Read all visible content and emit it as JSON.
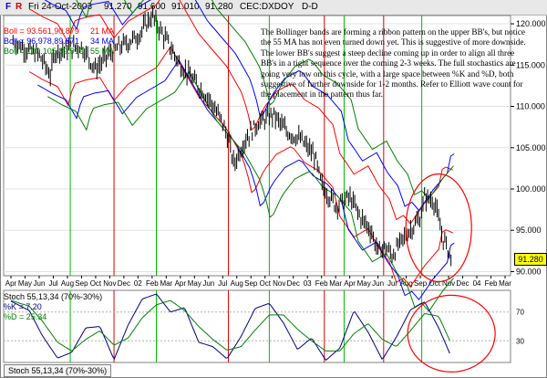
{
  "header": {
    "f_label": "F",
    "r_label": "R",
    "date": "Fri 24-Oct-2003",
    "open": "91.270",
    "high": "91.600",
    "low": "91.010",
    "close": "91.280",
    "symbol": "CEC:DXDOY",
    "period": "D-D"
  },
  "legend": [
    {
      "label": "Boll = 93.561,90.879",
      "ma": "21 MA",
      "color": "#ff0000"
    },
    {
      "label": "Boll = 96.978,89.871",
      "ma": "34 MA",
      "color": "#0000ff"
    },
    {
      "label": "Boll = 100.105,89.919",
      "ma": "55 MA",
      "color": "#008000"
    }
  ],
  "annotation": "The Bollinger bands are forming a ribbon pattern on the upper BB's, but notice the 55 MA has not even turned down yet.  This is suggestive of more downside.  The lower BB's suggest a steep decline coming up in order to align all three BB's in a tight sequence over the coming 2-3 weeks.  The full stochastics are going very low on this cycle, with a large space between %K and %D, both suggestive of further downside for 1-2 months.  Refer to Elliott wave count for the placement in the pattern thus far.",
  "price_badge": "91.280",
  "stoch_legend": {
    "title": "Stoch 55,13,34 (70%-30%)",
    "k": "%K = 7.20",
    "d": "%D = 25.34",
    "k_color": "#000080",
    "d_color": "#008000"
  },
  "status_tab": "Stoch 55,13,34 (70%-30%)",
  "chart_data": [
    {
      "type": "line",
      "ylim": [
        89.5,
        121
      ],
      "y_ticks": [
        90,
        95,
        100,
        105,
        110,
        115,
        120
      ],
      "x_ticks": [
        "Apr",
        "May",
        "Jun",
        "Jul",
        "Aug",
        "Sep",
        "Oct",
        "Nov",
        "Dec",
        "02",
        "Feb",
        "Mar",
        "Apr",
        "May",
        "Jun",
        "Jul",
        "Aug",
        "Sep",
        "Oct",
        "Nov",
        "Dec",
        "03",
        "Feb",
        "Mar",
        "Apr",
        "May",
        "Jun",
        "Jul",
        "Aug",
        "Sep",
        "Oct",
        "Nov",
        "Dec",
        "04",
        "Feb",
        "Mar"
      ],
      "x_index_range": [
        0,
        35
      ],
      "price_path": [
        [
          0,
          118
        ],
        [
          1,
          117
        ],
        [
          2,
          116.2
        ],
        [
          2.8,
          113.8
        ],
        [
          3.1,
          116.5
        ],
        [
          4,
          117
        ],
        [
          5,
          117.3
        ],
        [
          6,
          114.5
        ],
        [
          7,
          116.5
        ],
        [
          8,
          117.5
        ],
        [
          9,
          118.5
        ],
        [
          10,
          121
        ],
        [
          11,
          118
        ],
        [
          12,
          115
        ],
        [
          13,
          113
        ],
        [
          14,
          111
        ],
        [
          15,
          108
        ],
        [
          15.4,
          106
        ],
        [
          15.8,
          103
        ],
        [
          16.6,
          106
        ],
        [
          17.5,
          108
        ],
        [
          18.6,
          109
        ],
        [
          19.5,
          107
        ],
        [
          20.5,
          106
        ],
        [
          21.5,
          104
        ],
        [
          22,
          100.5
        ],
        [
          23,
          98
        ],
        [
          24,
          99
        ],
        [
          24.8,
          96.5
        ],
        [
          25.5,
          95
        ],
        [
          26,
          92.5
        ],
        [
          26.5,
          93
        ],
        [
          27,
          92
        ],
        [
          28,
          94.5
        ],
        [
          29,
          96.5
        ],
        [
          29.3,
          99
        ],
        [
          30,
          98.5
        ],
        [
          30.5,
          94.5
        ],
        [
          31,
          92.5
        ],
        [
          31.2,
          91.3
        ]
      ],
      "series": [
        {
          "name": "21 MA",
          "color": "#ff0000",
          "band_offsets": [
            3.8,
            -3.8
          ],
          "lag": 1.3
        },
        {
          "name": "34 MA",
          "color": "#0000ff",
          "band_offsets": [
            5.4,
            -5.4
          ],
          "lag": 1.9
        },
        {
          "name": "55 MA",
          "color": "#008000",
          "band_offsets": [
            6.8,
            -6.8
          ],
          "lag": 2.6
        }
      ],
      "vertical_markers": [
        {
          "x": 4.2,
          "color": "#00bb00"
        },
        {
          "x": 7.3,
          "color": "#dd0000"
        },
        {
          "x": 10.3,
          "color": "#00bb00"
        },
        {
          "x": 15.4,
          "color": "#dd0000"
        },
        {
          "x": 18.3,
          "color": "#00bb00"
        },
        {
          "x": 22.2,
          "color": "#dd0000"
        },
        {
          "x": 23.6,
          "color": "#00bb00"
        },
        {
          "x": 26.4,
          "color": "#dd0000"
        },
        {
          "x": 29.1,
          "color": "#00bb00"
        }
      ],
      "highlight": "ellipse around latest prices"
    },
    {
      "type": "line",
      "title": "Stoch 55,13,34 (70%-30%)",
      "ylim": [
        0,
        100
      ],
      "reference_lines": [
        30,
        70
      ],
      "series": [
        {
          "name": "%K",
          "color": "#000080",
          "points": [
            [
              0,
              85
            ],
            [
              1.3,
              72
            ],
            [
              2.2,
              38
            ],
            [
              3.3,
              6
            ],
            [
              4.3,
              14
            ],
            [
              5.3,
              48
            ],
            [
              6.3,
              50
            ],
            [
              7.3,
              4
            ],
            [
              8.3,
              52
            ],
            [
              9.3,
              88
            ],
            [
              10.3,
              95
            ],
            [
              11.3,
              70
            ],
            [
              12.3,
              76
            ],
            [
              13.3,
              28
            ],
            [
              14.3,
              22
            ],
            [
              15.3,
              5
            ],
            [
              16.3,
              36
            ],
            [
              17.3,
              75
            ],
            [
              18.3,
              82
            ],
            [
              19.3,
              55
            ],
            [
              20.3,
              18
            ],
            [
              21.3,
              34
            ],
            [
              22.3,
              3
            ],
            [
              23.3,
              20
            ],
            [
              24.3,
              72
            ],
            [
              25.3,
              42
            ],
            [
              26.3,
              4
            ],
            [
              27.3,
              35
            ],
            [
              28.3,
              73
            ],
            [
              29.3,
              84
            ],
            [
              30.3,
              48
            ],
            [
              31.2,
              7.2
            ]
          ]
        },
        {
          "name": "%D",
          "color": "#008000",
          "points": [
            [
              0,
              86
            ],
            [
              1.3,
              78
            ],
            [
              2.2,
              58
            ],
            [
              3.3,
              28
            ],
            [
              4.3,
              16
            ],
            [
              5.3,
              32
            ],
            [
              6.3,
              44
            ],
            [
              7.3,
              24
            ],
            [
              8.3,
              34
            ],
            [
              9.3,
              62
            ],
            [
              10.3,
              80
            ],
            [
              11.3,
              86
            ],
            [
              12.3,
              72
            ],
            [
              13.3,
              50
            ],
            [
              14.3,
              32
            ],
            [
              15.3,
              17
            ],
            [
              16.3,
              22
            ],
            [
              17.3,
              45
            ],
            [
              18.3,
              66
            ],
            [
              19.3,
              66
            ],
            [
              20.3,
              46
            ],
            [
              21.3,
              30
            ],
            [
              22.3,
              16
            ],
            [
              23.3,
              16
            ],
            [
              24.3,
              40
            ],
            [
              25.3,
              54
            ],
            [
              26.3,
              32
            ],
            [
              27.3,
              22
            ],
            [
              28.3,
              44
            ],
            [
              29.3,
              68
            ],
            [
              30.3,
              64
            ],
            [
              31.2,
              25.34
            ]
          ]
        }
      ],
      "highlight": "ellipse around latest values"
    }
  ]
}
